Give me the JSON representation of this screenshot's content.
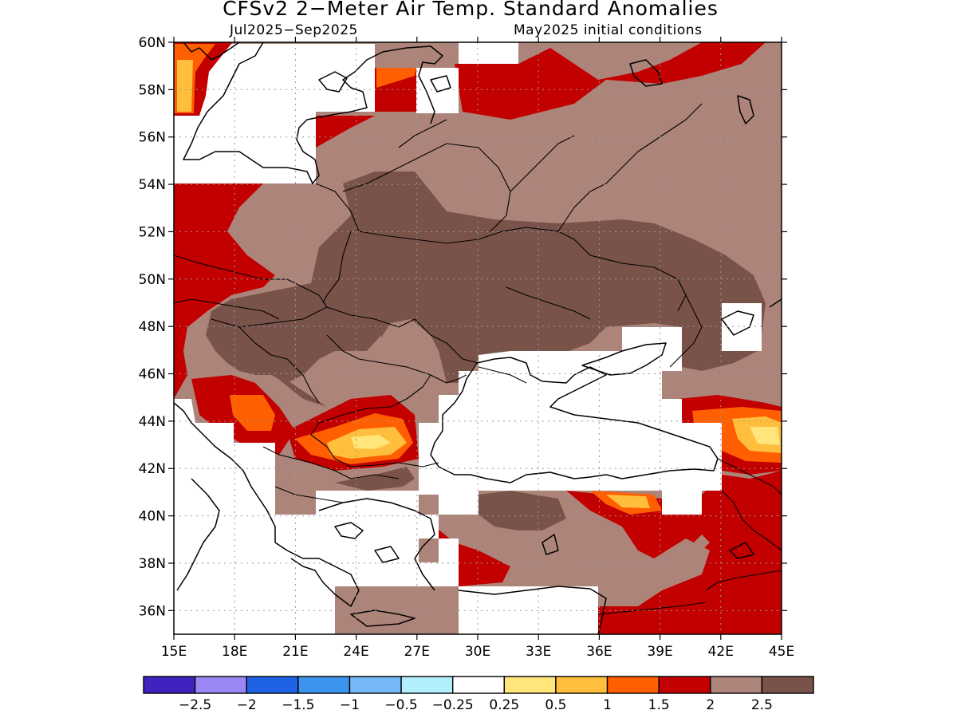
{
  "title": "CFSv2 2−Meter Air Temp. Standard Anomalies",
  "subtitle_period": "Jul2025−Sep2025",
  "subtitle_init": "May2025 initial conditions",
  "map": {
    "lon_range": [
      15,
      45
    ],
    "lat_range": [
      35,
      60
    ],
    "lat_ticks": [
      {
        "value": 60,
        "label": "60N"
      },
      {
        "value": 58,
        "label": "58N"
      },
      {
        "value": 56,
        "label": "56N"
      },
      {
        "value": 54,
        "label": "54N"
      },
      {
        "value": 52,
        "label": "52N"
      },
      {
        "value": 50,
        "label": "50N"
      },
      {
        "value": 48,
        "label": "48N"
      },
      {
        "value": 46,
        "label": "46N"
      },
      {
        "value": 44,
        "label": "44N"
      },
      {
        "value": 42,
        "label": "42N"
      },
      {
        "value": 40,
        "label": "40N"
      },
      {
        "value": 38,
        "label": "38N"
      },
      {
        "value": 36,
        "label": "36N"
      }
    ],
    "lon_ticks": [
      {
        "value": 15,
        "label": "15E"
      },
      {
        "value": 18,
        "label": "18E"
      },
      {
        "value": 21,
        "label": "21E"
      },
      {
        "value": 24,
        "label": "24E"
      },
      {
        "value": 27,
        "label": "27E"
      },
      {
        "value": 30,
        "label": "30E"
      },
      {
        "value": 33,
        "label": "33E"
      },
      {
        "value": 36,
        "label": "36E"
      },
      {
        "value": 39,
        "label": "39E"
      },
      {
        "value": 42,
        "label": "42E"
      },
      {
        "value": 45,
        "label": "45E"
      }
    ],
    "grid": true
  },
  "colorbar": {
    "colors": [
      "#3f22bf",
      "#9b86f5",
      "#1f62e6",
      "#3c94ef",
      "#76b7f5",
      "#b2eefb",
      "#ffffff",
      "#ffe57a",
      "#ffbe3c",
      "#ff5f00",
      "#c30000",
      "#ad847a",
      "#79524a"
    ],
    "labels": [
      "−2.5",
      "−2",
      "−1.5",
      "−1",
      "−0.5",
      "−0.25",
      "0.25",
      "0.5",
      "1",
      "1.5",
      "2",
      "2.5"
    ]
  }
}
